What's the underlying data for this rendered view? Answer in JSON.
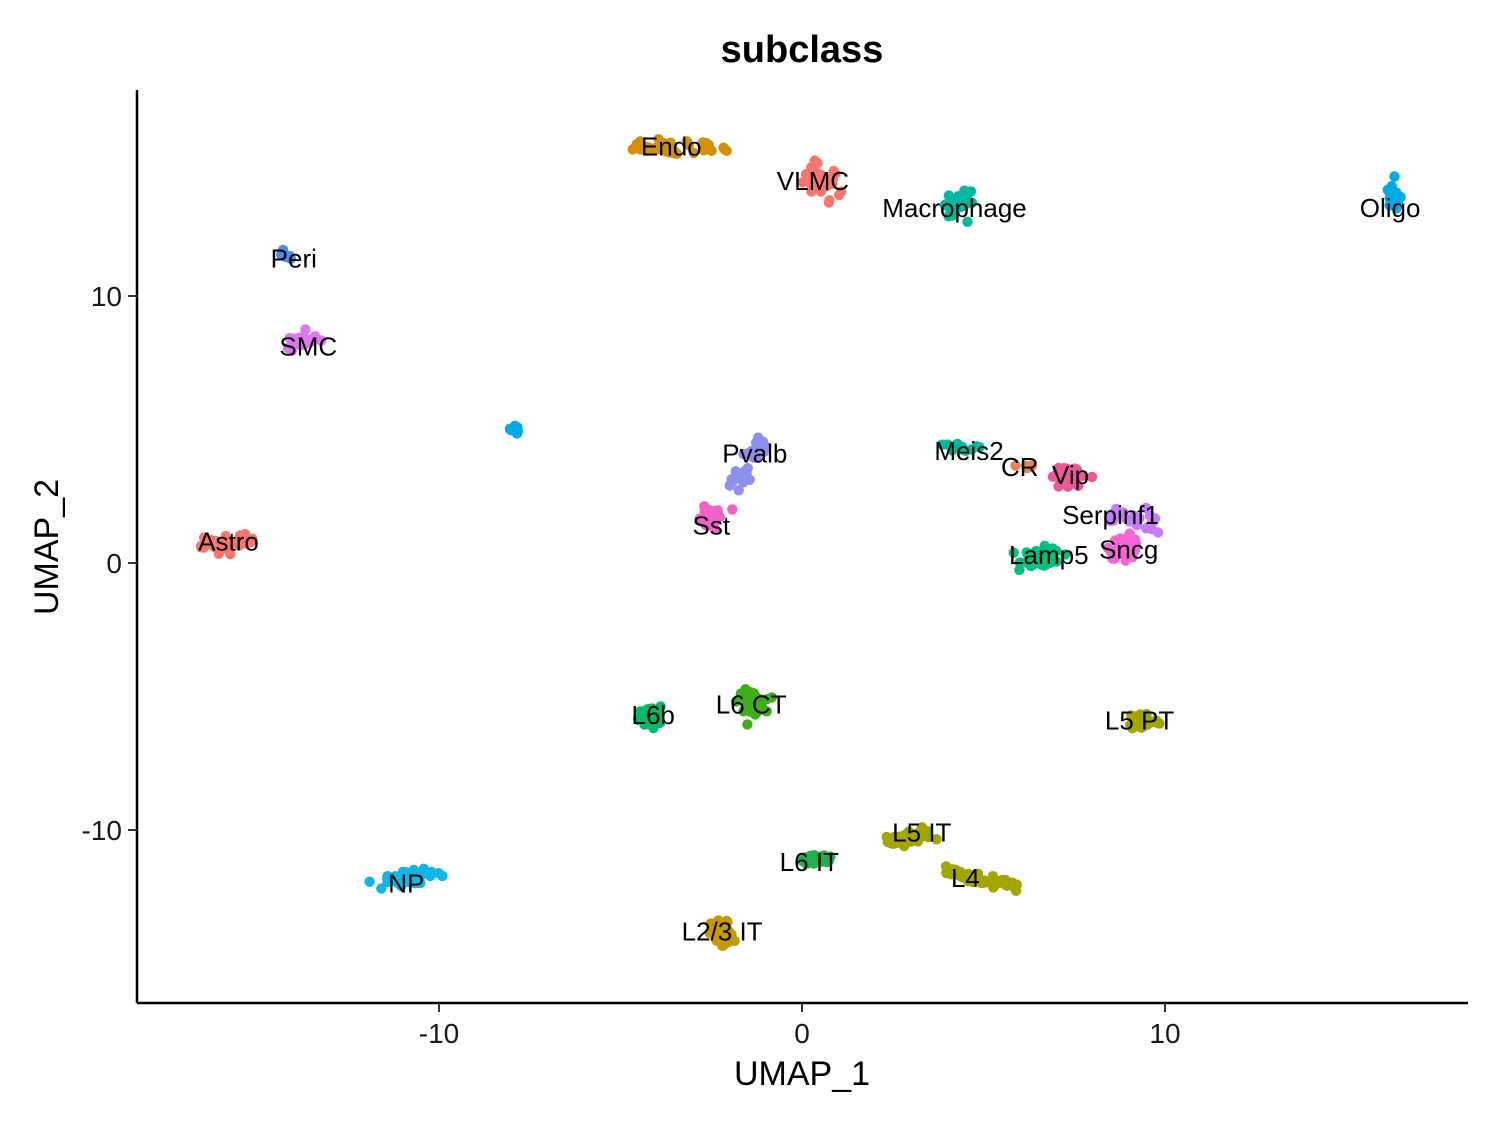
{
  "chart_data": {
    "type": "scatter",
    "title": "subclass",
    "xlabel": "UMAP_1",
    "ylabel": "UMAP_2",
    "xlim": [
      -18.3,
      18.3
    ],
    "ylim": [
      -16.0,
      17.5
    ],
    "xticks": [
      -10,
      0,
      10
    ],
    "yticks": [
      -10,
      0,
      10
    ],
    "grid": false,
    "legend": "none",
    "clusters": [
      {
        "label": "Endo",
        "color": "#d4900a",
        "count": 45,
        "spread": [
          0.9,
          0.25
        ],
        "label_pos": [
          -3.6,
          15.6
        ],
        "points": [
          [
            -4.6,
            15.6
          ],
          [
            -2.7,
            15.6
          ]
        ]
      },
      {
        "label": "VLMC",
        "color": "#f8766d",
        "count": 40,
        "spread": [
          0.45,
          0.55
        ],
        "label_pos": [
          0.3,
          14.3
        ],
        "points": [
          [
            0.5,
            14.2
          ]
        ],
        "alt_color": "#f0637e"
      },
      {
        "label": "Macrophage",
        "color": "#00b8a0",
        "count": 30,
        "spread": [
          0.25,
          0.45
        ],
        "label_pos": [
          4.2,
          13.3
        ],
        "points": [
          [
            4.3,
            13.4
          ]
        ]
      },
      {
        "label": "Oligo",
        "color": "#00a9e6",
        "count": 25,
        "spread": [
          0.15,
          0.45
        ],
        "label_pos": [
          16.2,
          13.3
        ],
        "points": [
          [
            16.3,
            13.7
          ]
        ]
      },
      {
        "label": "Peri",
        "color": "#4a8ff0",
        "count": 10,
        "spread": [
          0.2,
          0.2
        ],
        "label_pos": [
          -14.0,
          11.4
        ],
        "points": [
          [
            -14.2,
            11.5
          ]
        ]
      },
      {
        "label": "SMC",
        "color": "#e077f0",
        "count": 22,
        "spread": [
          0.35,
          0.25
        ],
        "label_pos": [
          -13.6,
          8.1
        ],
        "points": [
          [
            -13.8,
            8.3
          ]
        ]
      },
      {
        "label": "",
        "color": "#00a9e6",
        "count": 8,
        "spread": [
          0.12,
          0.12
        ],
        "label_pos": null,
        "points": [
          [
            -7.9,
            5.0
          ]
        ]
      },
      {
        "label": "Pvalb",
        "color": "#8f8ff0",
        "count": 30,
        "spread": [
          0.2,
          0.2
        ],
        "label_pos": [
          -1.3,
          4.1
        ],
        "points": [
          [
            -1.8,
            2.8
          ],
          [
            -1.1,
            4.6
          ]
        ]
      },
      {
        "label": "Sst",
        "color": "#f062c8",
        "count": 35,
        "spread": [
          0.3,
          0.35
        ],
        "label_pos": [
          -2.5,
          1.4
        ],
        "points": [
          [
            -2.5,
            1.7
          ]
        ]
      },
      {
        "label": "Astro",
        "color": "#f8766d",
        "count": 35,
        "spread": [
          0.4,
          0.18
        ],
        "label_pos": [
          -15.8,
          0.8
        ],
        "points": [
          [
            -16.3,
            0.5
          ],
          [
            -15.3,
            1.0
          ]
        ]
      },
      {
        "label": "Meis2",
        "color": "#00b8a0",
        "count": 12,
        "spread": [
          0.35,
          0.12
        ],
        "label_pos": [
          4.6,
          4.2
        ],
        "points": [
          [
            4.4,
            4.3
          ]
        ]
      },
      {
        "label": "CR",
        "color": "#e8845a",
        "count": 8,
        "spread": [
          0.2,
          0.12
        ],
        "label_pos": [
          6.0,
          3.6
        ],
        "points": [
          [
            6.1,
            3.6
          ]
        ]
      },
      {
        "label": "Vip",
        "color": "#f0569a",
        "count": 55,
        "spread": [
          0.35,
          0.35
        ],
        "label_pos": [
          7.4,
          3.3
        ],
        "points": [
          [
            7.3,
            3.3
          ]
        ]
      },
      {
        "label": "Serpinf1",
        "color": "#c77cff",
        "count": 30,
        "spread": [
          0.3,
          0.3
        ],
        "label_pos": [
          8.5,
          1.8
        ],
        "points": [
          [
            8.4,
            1.8
          ],
          [
            9.6,
            1.4
          ]
        ]
      },
      {
        "label": "Lamp5",
        "color": "#00bf7d",
        "count": 55,
        "spread": [
          0.45,
          0.3
        ],
        "label_pos": [
          6.8,
          0.3
        ],
        "points": [
          [
            6.6,
            0.2
          ]
        ]
      },
      {
        "label": "Sncg",
        "color": "#f765d8",
        "count": 45,
        "spread": [
          0.35,
          0.35
        ],
        "label_pos": [
          9.0,
          0.5
        ],
        "points": [
          [
            8.9,
            0.6
          ]
        ]
      },
      {
        "label": "L6 CT",
        "color": "#3fae1b",
        "count": 50,
        "spread": [
          0.3,
          0.35
        ],
        "label_pos": [
          -1.4,
          -5.3
        ],
        "points": [
          [
            -1.4,
            -5.2
          ]
        ]
      },
      {
        "label": "L6b",
        "color": "#00b86a",
        "count": 40,
        "spread": [
          0.25,
          0.35
        ],
        "label_pos": [
          -4.1,
          -5.7
        ],
        "points": [
          [
            -4.2,
            -5.8
          ]
        ]
      },
      {
        "label": "L5 PT",
        "color": "#a3a500",
        "count": 40,
        "spread": [
          0.35,
          0.3
        ],
        "label_pos": [
          9.3,
          -5.9
        ],
        "points": [
          [
            9.4,
            -5.9
          ]
        ]
      },
      {
        "label": "L5 IT",
        "color": "#a3a500",
        "count": 40,
        "spread": [
          0.3,
          0.2
        ],
        "label_pos": [
          3.3,
          -10.1
        ],
        "points": [
          [
            2.4,
            -10.4
          ],
          [
            3.4,
            -10.1
          ]
        ]
      },
      {
        "label": "L4",
        "color": "#a3a500",
        "count": 55,
        "spread": [
          0.25,
          0.12
        ],
        "label_pos": [
          4.5,
          -11.8
        ],
        "points": [
          [
            3.9,
            -11.5
          ],
          [
            5.8,
            -12.1
          ]
        ]
      },
      {
        "label": "L6 IT",
        "color": "#22b14c",
        "count": 40,
        "spread": [
          0.35,
          0.2
        ],
        "label_pos": [
          0.2,
          -11.2
        ],
        "points": [
          [
            0.4,
            -11.1
          ]
        ]
      },
      {
        "label": "NP",
        "color": "#13b5e6",
        "count": 45,
        "spread": [
          0.5,
          0.18
        ],
        "label_pos": [
          -10.9,
          -12.0
        ],
        "points": [
          [
            -11.3,
            -12.0
          ],
          [
            -10.4,
            -11.6
          ]
        ]
      },
      {
        "label": "L2/3 IT",
        "color": "#c49a00",
        "count": 45,
        "spread": [
          0.25,
          0.45
        ],
        "label_pos": [
          -2.2,
          -13.8
        ],
        "points": [
          [
            -2.2,
            -13.9
          ]
        ]
      }
    ]
  }
}
